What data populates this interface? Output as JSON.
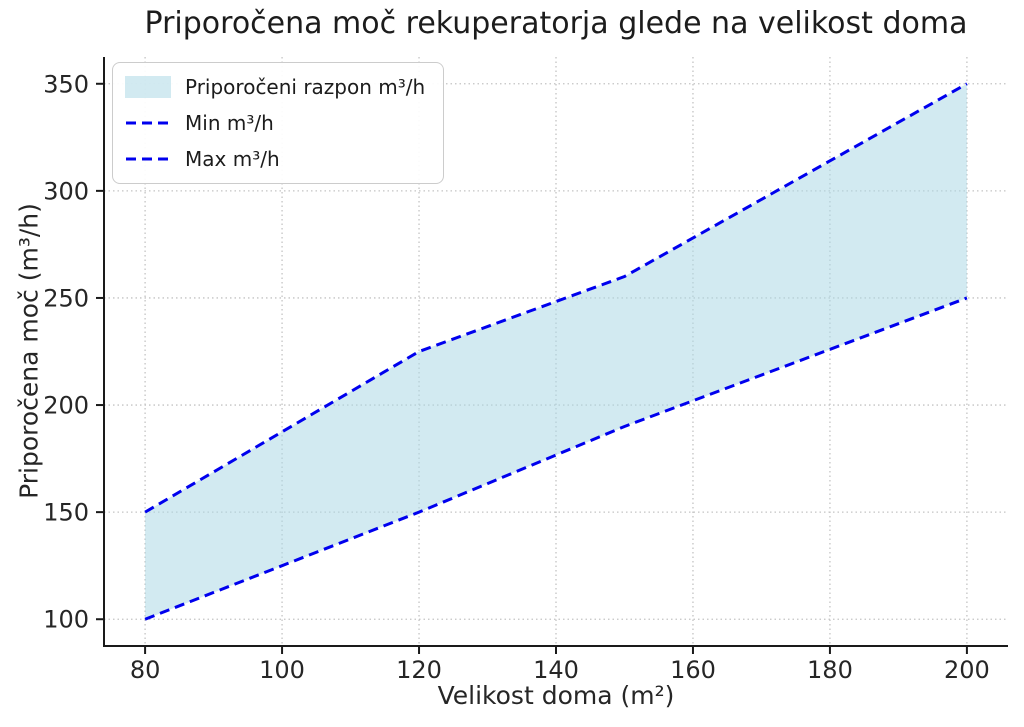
{
  "chart_data": {
    "type": "area",
    "title": "Priporočena moč rekuperatorja glede na velikost doma",
    "xlabel": "Velikost doma (m²)",
    "ylabel": "Priporočena moč (m³/h)",
    "x": [
      80,
      120,
      150,
      200
    ],
    "series": [
      {
        "name": "Min m³/h",
        "values": [
          100,
          150,
          190,
          250
        ]
      },
      {
        "name": "Max m³/h",
        "values": [
          150,
          225,
          260,
          350
        ]
      }
    ],
    "legend": [
      "Priporočeni razpon m³/h",
      "Min m³/h",
      "Max m³/h"
    ],
    "legend_position": "upper left",
    "xticks": [
      80,
      100,
      120,
      140,
      160,
      180,
      200
    ],
    "yticks": [
      100,
      150,
      200,
      250,
      300,
      350
    ],
    "xlim": [
      74,
      206
    ],
    "ylim": [
      87.5,
      362.5
    ],
    "grid": true,
    "grid_style": "dotted",
    "colors": {
      "line": "#0000ee",
      "fill": "rgba(173,216,230,0.55)",
      "text": "#262626",
      "grid": "#c4c4c4",
      "spine": "#1a1a1a"
    }
  }
}
